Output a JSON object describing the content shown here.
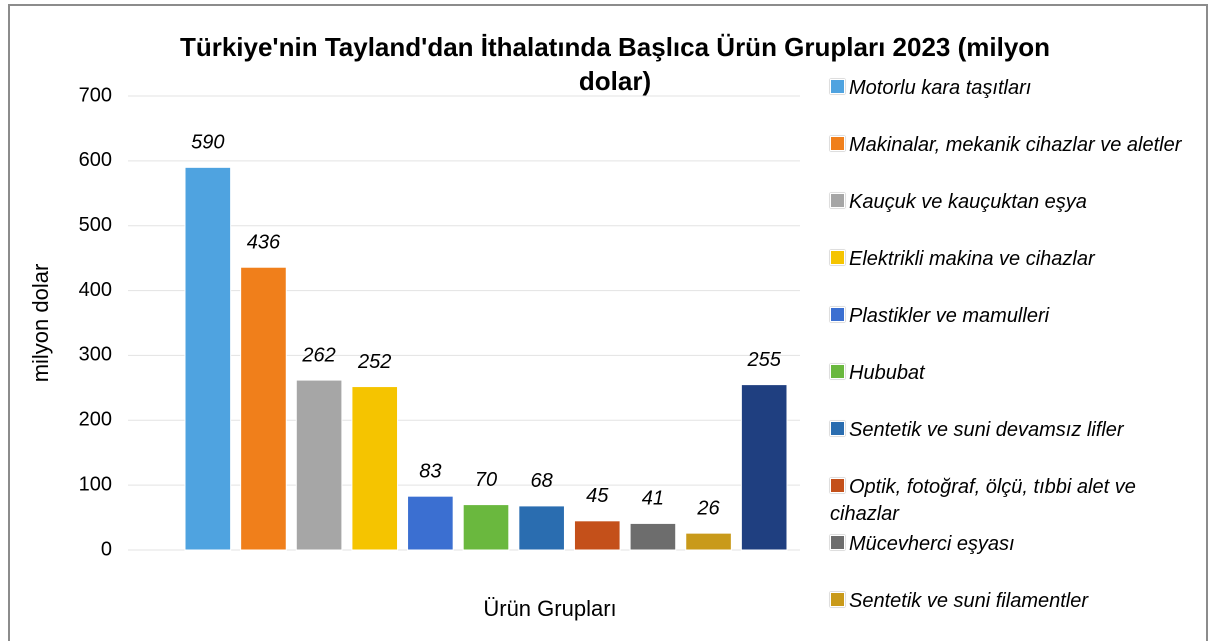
{
  "chart_data": {
    "type": "bar",
    "title": "Türkiye'nin Tayland'dan İthalatında Başlıca Ürün Grupları 2023 (milyon dolar)",
    "x_label": "Ürün Grupları",
    "y_label": "milyon dolar",
    "categories": [
      "Motorlu kara taşıtları",
      "Makinalar, mekanik cihazlar ve aletler",
      "Kauçuk ve kauçuktan eşya",
      "Elektrikli makina ve cihazlar",
      "Plastikler ve mamulleri",
      "Hububat",
      "Sentetik ve suni devamsız lifler",
      "Optik, fotoğraf, ölçü, tıbbi alet ve cihazlar",
      "Mücevherci eşyası",
      "Sentetik ve suni filamentler",
      null
    ],
    "values": [
      590,
      436,
      262,
      252,
      83,
      70,
      68,
      45,
      41,
      26,
      255
    ],
    "colors": [
      "#4fa3e0",
      "#f07f1b",
      "#a6a6a6",
      "#f5c400",
      "#3b6fd1",
      "#6ab83e",
      "#2a6db0",
      "#c4501a",
      "#6d6d6d",
      "#c99a1a",
      "#1f3f80"
    ],
    "ylim": [
      0,
      700
    ],
    "yticks": [
      0,
      100,
      200,
      300,
      400,
      500,
      600,
      700
    ],
    "grid": true
  }
}
